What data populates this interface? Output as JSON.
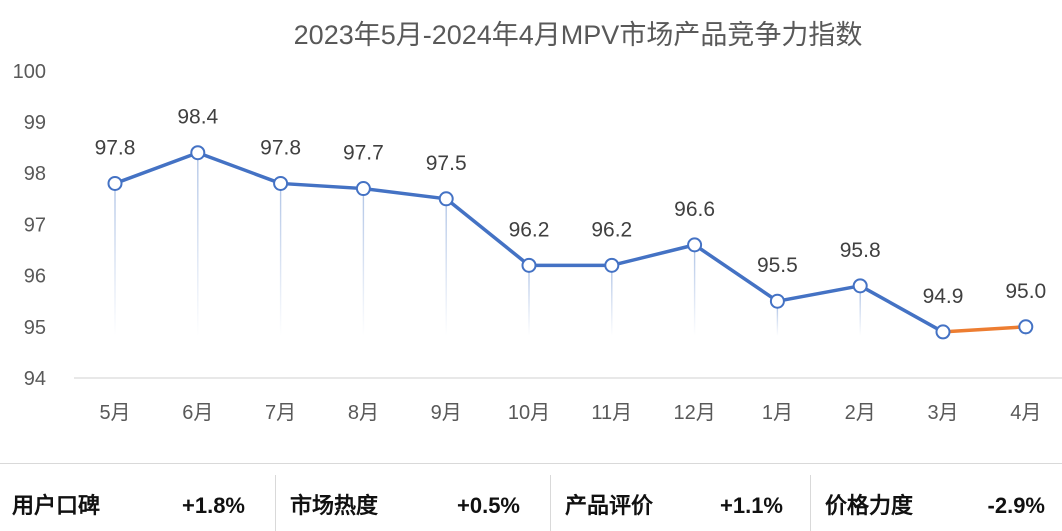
{
  "chart_data": {
    "type": "line",
    "title": "2023年5月-2024年4月MPV市场产品竞争力指数",
    "categories": [
      "5月",
      "6月",
      "7月",
      "8月",
      "9月",
      "10月",
      "11月",
      "12月",
      "1月",
      "2月",
      "3月",
      "4月"
    ],
    "values": [
      97.8,
      98.4,
      97.8,
      97.7,
      97.5,
      96.2,
      96.2,
      96.6,
      95.5,
      95.8,
      94.9,
      95.0
    ],
    "data_labels": [
      "97.8",
      "98.4",
      "97.8",
      "97.7",
      "97.5",
      "96.2",
      "96.2",
      "96.6",
      "95.5",
      "95.8",
      "94.9",
      "95.0"
    ],
    "y_ticks": [
      100,
      99,
      98,
      97,
      96,
      95,
      94
    ],
    "ylim": [
      94,
      100
    ],
    "grid": false,
    "colors": {
      "line": "#4472C4",
      "last_segment": "#ED7D31",
      "marker_fill": "#FFFFFF",
      "drop_line": "#B4C7E7",
      "axis": "#D9D9D9",
      "text": "#595959"
    }
  },
  "summary": {
    "items": [
      {
        "label": "用户口碑",
        "value": "+1.8%"
      },
      {
        "label": "市场热度",
        "value": "+0.5%"
      },
      {
        "label": "产品评价",
        "value": "+1.1%"
      },
      {
        "label": "价格力度",
        "value": "-2.9%"
      }
    ]
  }
}
